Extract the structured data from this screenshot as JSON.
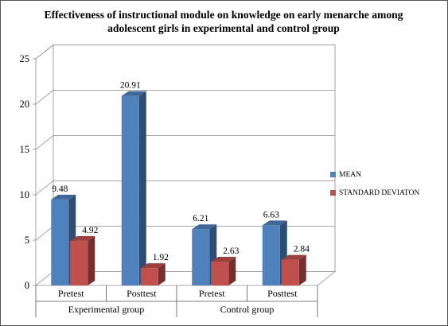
{
  "chart_data": {
    "type": "bar",
    "title": "Effectiveness of instructional module on knowledge on early menarche among adolescent girls in experimental and control group",
    "xlabel": "",
    "ylabel": "",
    "ylim": [
      0,
      25
    ],
    "yticks": [
      "0",
      "5",
      "10",
      "15",
      "20",
      "25"
    ],
    "grid": true,
    "legend_position": "right",
    "categories": [
      "Pretest",
      "Posttest",
      "Pretest",
      "Posttest"
    ],
    "groups": [
      {
        "label": "Experimental group",
        "span": 2
      },
      {
        "label": "Control group",
        "span": 2
      }
    ],
    "series": [
      {
        "name": "MEAN",
        "color": "#4f81bd",
        "values": [
          9.48,
          20.91,
          6.21,
          6.63
        ],
        "labels": [
          "9.48",
          "20.91",
          "6.21",
          "6.63"
        ]
      },
      {
        "name": "STANDARD DEVIATON",
        "color": "#c0504d",
        "values": [
          4.92,
          1.92,
          2.63,
          2.84
        ],
        "labels": [
          "4.92",
          "1.92",
          "2.63",
          "2.84"
        ]
      }
    ]
  }
}
